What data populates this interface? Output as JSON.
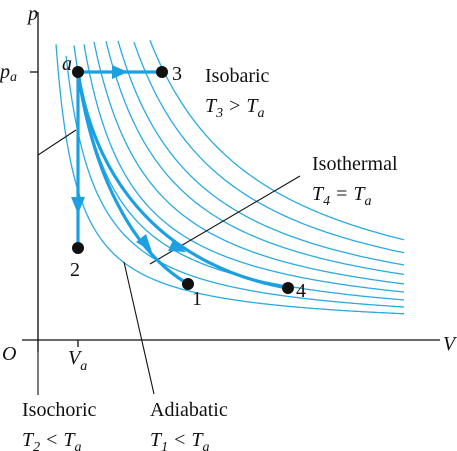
{
  "axes": {
    "y_label": "p",
    "x_label": "V",
    "origin": "O",
    "p_tick": {
      "base": "p",
      "sub": "a"
    },
    "v_tick": {
      "base": "V",
      "sub": "a"
    }
  },
  "points": {
    "a": "a",
    "p1": "1",
    "p2": "2",
    "p3": "3",
    "p4": "4"
  },
  "processes": [
    {
      "name": "Isobaric",
      "t": "T",
      "t_sub": "3",
      "op": ">",
      "t2": "T",
      "t2_sub": "a"
    },
    {
      "name": "Isothermal",
      "t": "T",
      "t_sub": "4",
      "op": "=",
      "t2": "T",
      "t2_sub": "a"
    },
    {
      "name": "Isochoric",
      "t": "T",
      "t_sub": "2",
      "op": "<",
      "t2": "T",
      "t2_sub": "a"
    },
    {
      "name": "Adiabatic",
      "t": "T",
      "t_sub": "1",
      "op": "<",
      "t2": "T",
      "t2_sub": "a"
    }
  ]
}
